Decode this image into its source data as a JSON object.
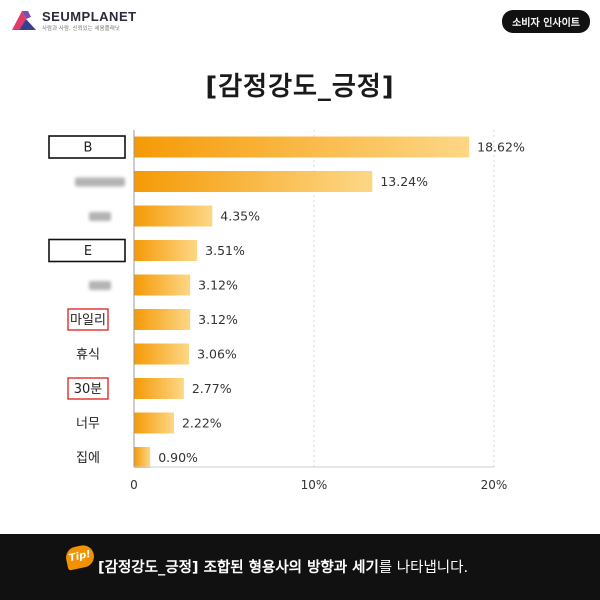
{
  "header": {
    "brand": "SEUMPLANET",
    "tagline": "사람과 사람, 신뢰있는 세움플래닛",
    "badge": "소비자 인사이트"
  },
  "colors": {
    "bar_start": "#f59a06",
    "bar_end": "#fdd786",
    "red_box": "#e53935",
    "footer_bg": "#111111",
    "tip_badge": "#f39200"
  },
  "icons": {
    "logo": "seumplanet-logo-icon"
  },
  "chart_data": {
    "type": "bar",
    "orientation": "horizontal",
    "title": "[감정강도_긍정]",
    "xlabel": "",
    "ylabel": "",
    "xlim": [
      0,
      20
    ],
    "xticks": [
      "0",
      "10%",
      "20%"
    ],
    "grid": true,
    "categories": [
      "B",
      "",
      "",
      "E",
      "",
      "마일리",
      "휴식",
      "30분",
      "너무",
      "집에"
    ],
    "values": [
      18.62,
      13.24,
      4.35,
      3.51,
      3.12,
      3.12,
      3.06,
      2.77,
      2.22,
      0.9
    ],
    "value_labels": [
      "18.62%",
      "13.24%",
      "4.35%",
      "3.51%",
      "3.12%",
      "3.12%",
      "3.06%",
      "2.77%",
      "2.22%",
      "0.90%"
    ],
    "label_style": [
      "black-box",
      "blurred",
      "blurred",
      "black-box",
      "blurred",
      "red-box",
      "plain",
      "red-box",
      "plain",
      "plain"
    ]
  },
  "footer": {
    "tip": "Tip!",
    "text_bold": "[감정강도_긍정] 조합된 형용사의 방향과 세기",
    "text_normal": "를 나타냅니다."
  }
}
